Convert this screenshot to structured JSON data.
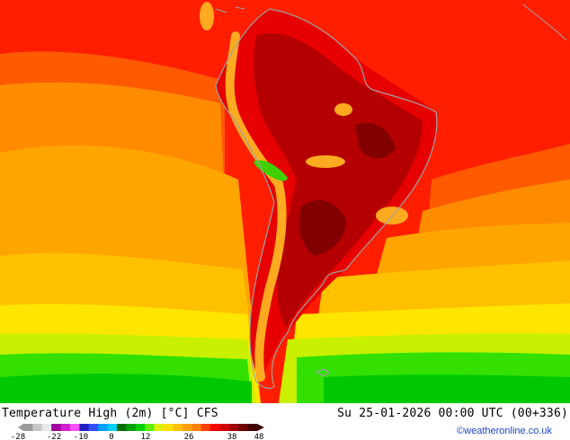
{
  "header": {
    "title": "Temperature High (2m) [°C] CFS",
    "datetime": "Su 25-01-2026 00:00 UTC (00+336)",
    "credit": "©weatheronline.co.uk"
  },
  "colorbar": {
    "tick_labels": [
      "-28",
      "-22",
      "-10",
      "0",
      "12",
      "26",
      "38",
      "48"
    ],
    "colors": [
      "#9a9a9a",
      "#c8c8c8",
      "#e8e8e8",
      "#a000a0",
      "#d020d0",
      "#ff50ff",
      "#2020c0",
      "#3050ff",
      "#00a0ff",
      "#00d0ff",
      "#007000",
      "#00a000",
      "#00d000",
      "#60f000",
      "#e0f000",
      "#ffe000",
      "#ffc000",
      "#ffa000",
      "#ff8000",
      "#ff4000",
      "#ff0000",
      "#d00000",
      "#a00000",
      "#700000",
      "#400000"
    ]
  },
  "map_colors": {
    "ocean_deep_south": "#00c800",
    "ocean_south": "#33e000",
    "ocean_yellowgreen": "#c8f000",
    "ocean_yellow": "#ffe600",
    "ocean_lightorange": "#ffc000",
    "ocean_orange": "#ffa500",
    "ocean_darkorange": "#ff8c00",
    "ocean_redorange": "#ff5a00",
    "tropics_red": "#ff1e00",
    "land_red": "#e60000",
    "land_darkred": "#b40000",
    "land_deepred": "#820000",
    "andes_orange": "#ffaa20",
    "andes_green": "#40d000",
    "coastline": "#a0a0a0"
  }
}
